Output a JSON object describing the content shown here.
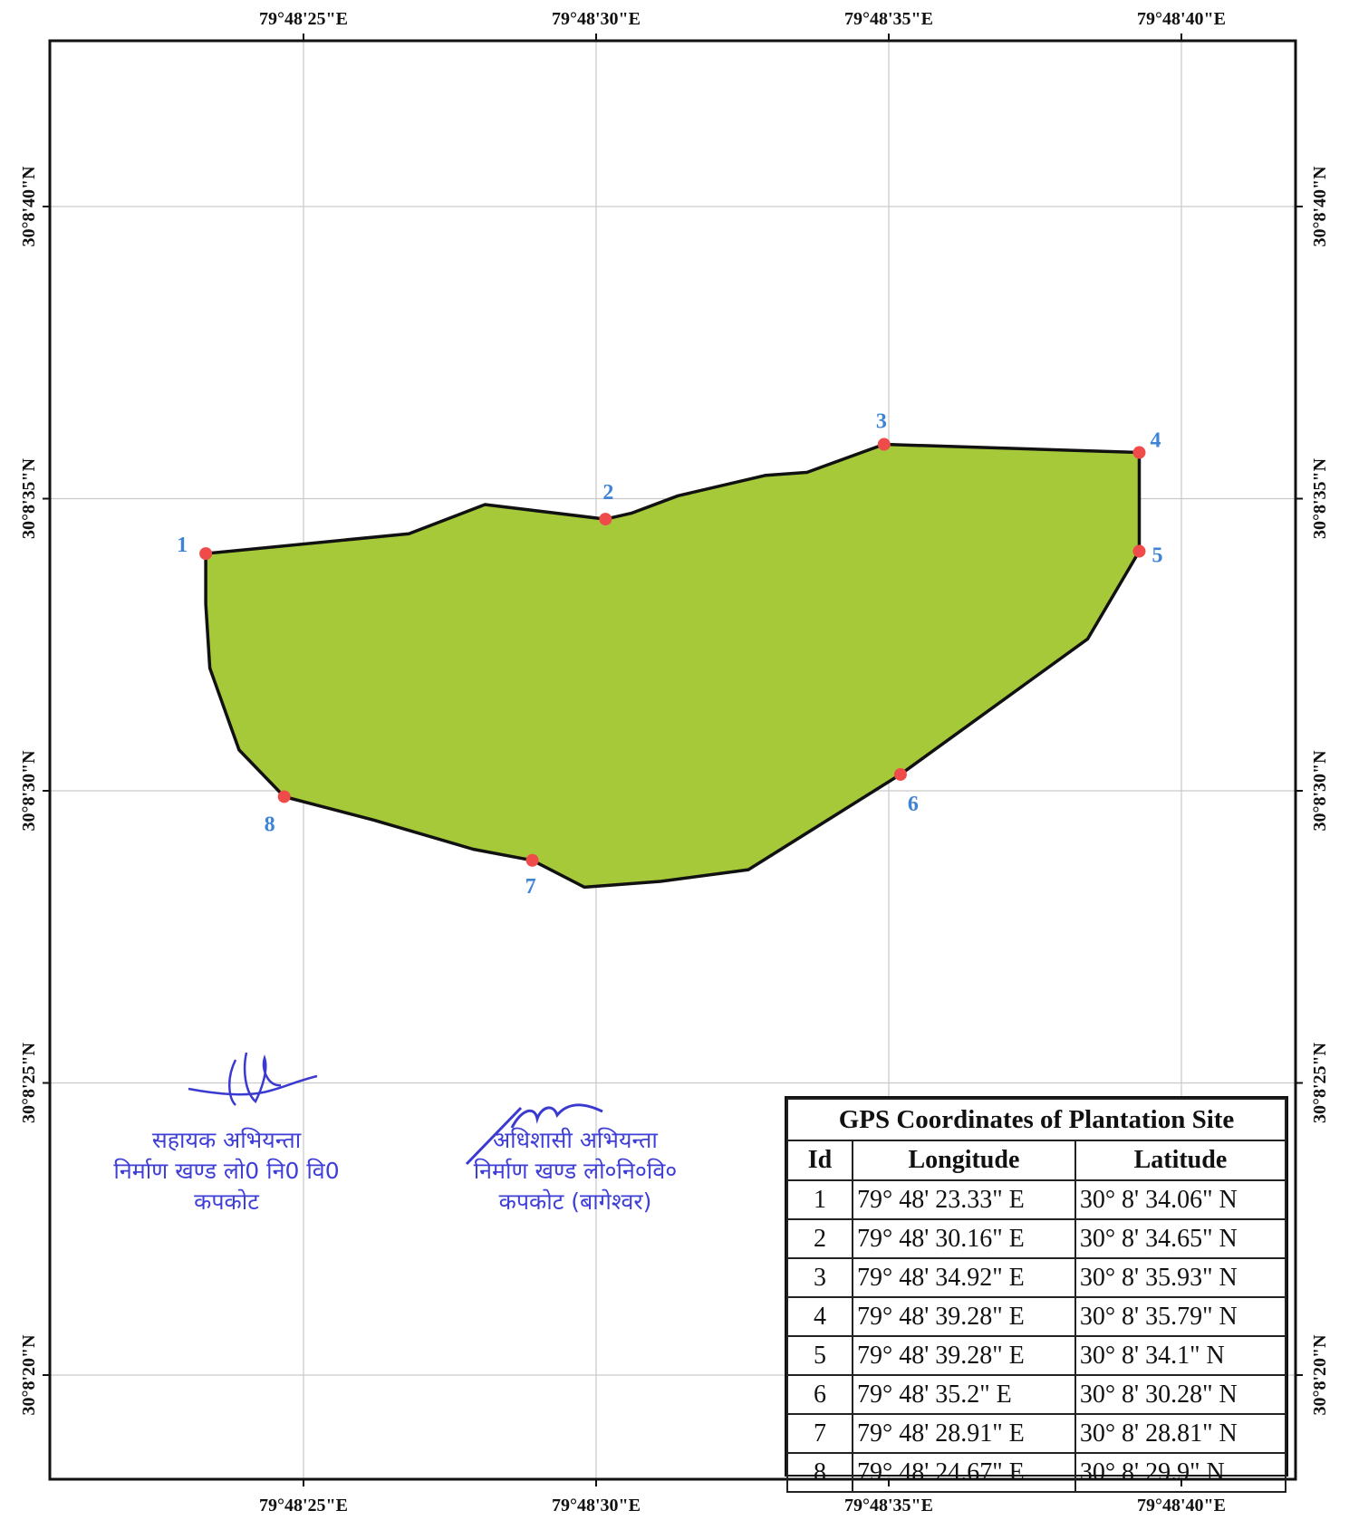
{
  "map": {
    "grid": {
      "top_labels": [
        "79°48'25\"E",
        "79°48'30\"E",
        "79°48'35\"E",
        "79°48'40\"E"
      ],
      "bottom_labels": [
        "79°48'25\"E",
        "79°48'30\"E",
        "79°48'35\"E",
        "79°48'40\"E"
      ],
      "left_labels": [
        "30°8'40\"N",
        "30°8'35\"N",
        "30°8'30\"N",
        "30°8'25\"N",
        "30°8'20\"N"
      ],
      "right_labels": [
        "30°8'40\"N",
        "30°8'35\"N",
        "30°8'30\"N",
        "30°8'25\"N",
        "30°8'20\"N"
      ],
      "lon_seconds": [
        25,
        30,
        35,
        40
      ],
      "lat_seconds": [
        40,
        35,
        30,
        25,
        20
      ]
    },
    "colors": {
      "polygon_fill": "#a6c93a",
      "polygon_stroke": "#111111",
      "point_color": "#ef4b4b",
      "label_color": "#3d84d6",
      "stamp_color": "#3f3fd8"
    },
    "points": [
      {
        "id": "1",
        "lon_s": 23.33,
        "lat_s": 34.06
      },
      {
        "id": "2",
        "lon_s": 30.16,
        "lat_s": 34.65
      },
      {
        "id": "3",
        "lon_s": 34.92,
        "lat_s": 35.93
      },
      {
        "id": "4",
        "lon_s": 39.28,
        "lat_s": 35.79
      },
      {
        "id": "5",
        "lon_s": 39.28,
        "lat_s": 34.1
      },
      {
        "id": "6",
        "lon_s": 35.2,
        "lat_s": 30.28
      },
      {
        "id": "7",
        "lon_s": 28.91,
        "lat_s": 28.81
      },
      {
        "id": "8",
        "lon_s": 24.67,
        "lat_s": 29.9
      }
    ]
  },
  "stamps": {
    "left": [
      "सहायक अभियन्ता",
      "निर्माण खण्ड लो0 नि0 वि0",
      "कपकोट"
    ],
    "right": [
      "अधिशासी अभियन्ता",
      "निर्माण खण्ड लो०नि०वि०",
      "कपकोट (बागेश्वर)"
    ]
  },
  "table": {
    "title": "GPS Coordinates of Plantation Site",
    "headers": [
      "Id",
      "Longitude",
      "Latitude"
    ],
    "rows": [
      [
        "1",
        "79° 48' 23.33\" E",
        "30° 8' 34.06\" N"
      ],
      [
        "2",
        "79° 48' 30.16\" E",
        "30° 8' 34.65\" N"
      ],
      [
        "3",
        "79° 48' 34.92\" E",
        "30° 8' 35.93\" N"
      ],
      [
        "4",
        "79° 48' 39.28\" E",
        "30° 8' 35.79\" N"
      ],
      [
        "5",
        "79° 48' 39.28\" E",
        "30° 8' 34.1\" N"
      ],
      [
        "6",
        "79° 48' 35.2\" E",
        "30° 8' 30.28\" N"
      ],
      [
        "7",
        "79° 48' 28.91\" E",
        "30° 8' 28.81\" N"
      ],
      [
        "8",
        "79° 48' 24.67\" E",
        "30° 8' 29.9\" N"
      ]
    ]
  }
}
